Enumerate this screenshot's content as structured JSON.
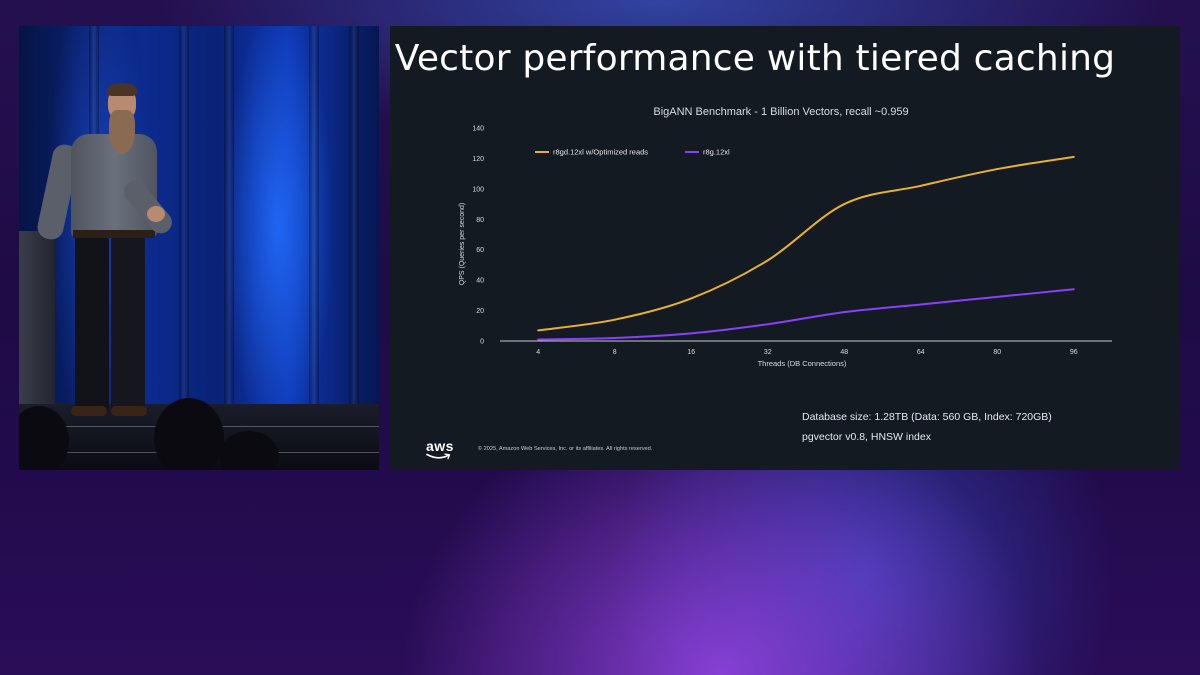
{
  "slide": {
    "title": "Vector performance with tiered caching",
    "database_size": "Database size: 1.28TB (Data: 560 GB, Index: 720GB)",
    "index_info": "pgvector v0.8, HNSW index",
    "logo_text": "aws",
    "copyright": "© 2025, Amazon Web Services, Inc. or its affiliates. All rights reserved."
  },
  "chart_data": {
    "type": "line",
    "title": "BigANN Benchmark - 1 Billion Vectors, recall ~0.959",
    "xlabel": "Threads (DB Connections)",
    "ylabel": "QPS (Queries per second)",
    "categories": [
      "4",
      "8",
      "16",
      "32",
      "48",
      "64",
      "80",
      "96"
    ],
    "yticks": [
      "0",
      "20",
      "40",
      "60",
      "80",
      "100",
      "120",
      "140"
    ],
    "ylim": [
      0,
      140
    ],
    "grid": false,
    "legend_position": "top-left",
    "series": [
      {
        "name": "r8gd.12xl w/Optimized reads",
        "color": "#e8b130",
        "values": [
          7,
          14,
          28,
          53,
          90,
          102,
          113,
          121
        ]
      },
      {
        "name": "r8g.12xl",
        "color": "#8a3ffc",
        "values": [
          1,
          2,
          5,
          11,
          19,
          24,
          29,
          34
        ]
      }
    ]
  }
}
